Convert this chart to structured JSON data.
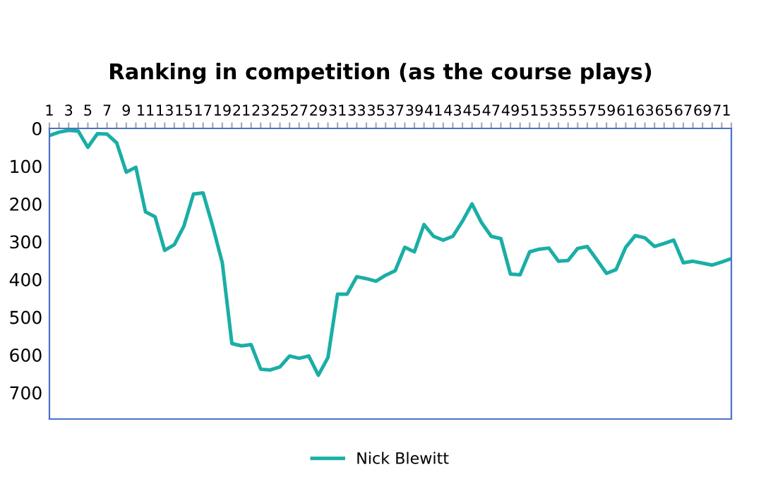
{
  "chart_data": {
    "type": "line",
    "title": "Ranking in competition (as the course plays)",
    "categories": [
      "1",
      null,
      "3",
      null,
      "5",
      null,
      "7",
      null,
      "9",
      null,
      "11",
      null,
      "13",
      null,
      "15",
      null,
      "17",
      null,
      "19",
      null,
      "21",
      null,
      "23",
      null,
      "25",
      null,
      "27",
      null,
      "29",
      null,
      "31",
      null,
      "33",
      null,
      "35",
      null,
      "37",
      null,
      "39",
      null,
      "41",
      null,
      "43",
      null,
      "45",
      null,
      "47",
      null,
      "49",
      null,
      "51",
      null,
      "53",
      null,
      "55",
      null,
      "57",
      null,
      "59",
      null,
      "61",
      null,
      "63",
      null,
      "65",
      null,
      "67",
      null,
      "69",
      null,
      "71",
      null
    ],
    "series": [
      {
        "name": "Nick Blewitt",
        "color": "#1aaea6",
        "values": [
          19,
          10,
          5,
          7,
          50,
          14,
          15,
          38,
          116,
          103,
          221,
          234,
          323,
          308,
          259,
          174,
          171,
          259,
          356,
          570,
          576,
          573,
          638,
          640,
          632,
          603,
          609,
          603,
          654,
          607,
          439,
          439,
          393,
          398,
          405,
          389,
          377,
          315,
          327,
          255,
          286,
          296,
          286,
          246,
          200,
          250,
          286,
          292,
          386,
          388,
          327,
          320,
          317,
          352,
          350,
          318,
          313,
          348,
          384,
          374,
          315,
          284,
          290,
          313,
          305,
          296,
          356,
          352,
          357,
          362,
          354,
          345
        ]
      }
    ],
    "ylim": [
      770,
      0
    ],
    "yticks": [
      0,
      100,
      200,
      300,
      400,
      500,
      600,
      700
    ],
    "grid": false,
    "legend": "bottom",
    "marker": "none",
    "line_style": "solid"
  }
}
